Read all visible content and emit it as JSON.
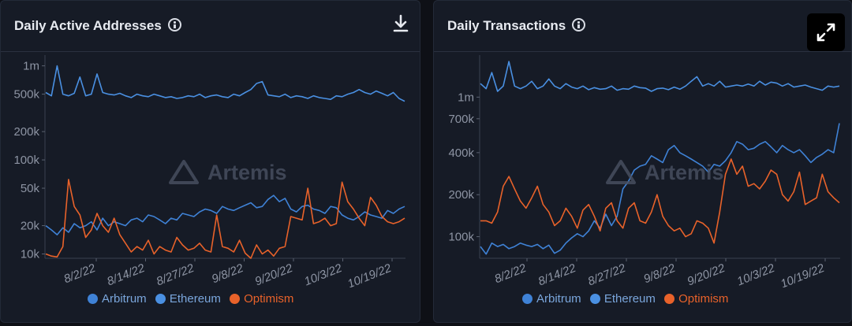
{
  "panels": {
    "left": {
      "title": "Daily Active Addresses",
      "watermark": "Artemis"
    },
    "right": {
      "title": "Daily Transactions",
      "watermark": "Artemis"
    }
  },
  "legend": [
    {
      "label": "Arbitrum",
      "color": "#3f82d6"
    },
    {
      "label": "Ethereum",
      "color": "#4a90e2"
    },
    {
      "label": "Optimism",
      "color": "#e8622a"
    }
  ],
  "icons": {
    "info": "info-icon",
    "download": "download-icon",
    "expand": "expand-icon",
    "logo": "artemis-logo-icon"
  },
  "chart_data": [
    {
      "type": "line",
      "title": "Daily Active Addresses",
      "y_scale": "log",
      "ylim": [
        9000,
        1300000
      ],
      "y_ticks": [
        {
          "value": 1000000,
          "label": "1m"
        },
        {
          "value": 500000,
          "label": "500k"
        },
        {
          "value": 200000,
          "label": "200k"
        },
        {
          "value": 100000,
          "label": "100k"
        },
        {
          "value": 50000,
          "label": "50k"
        },
        {
          "value": 20000,
          "label": "20k"
        },
        {
          "value": 10000,
          "label": "10k"
        }
      ],
      "x_ticks": [
        "8/2/22",
        "8/14/22",
        "8/27/22",
        "9/8/22",
        "9/20/22",
        "10/3/22",
        "10/19/22"
      ],
      "series": [
        {
          "name": "Ethereum",
          "color": "#4a90e2",
          "values": [
            520000,
            480000,
            1000000,
            500000,
            480000,
            510000,
            760000,
            480000,
            500000,
            820000,
            520000,
            500000,
            490000,
            510000,
            480000,
            460000,
            500000,
            480000,
            470000,
            500000,
            480000,
            460000,
            470000,
            450000,
            460000,
            480000,
            470000,
            500000,
            460000,
            480000,
            490000,
            470000,
            460000,
            500000,
            480000,
            520000,
            560000,
            650000,
            680000,
            490000,
            480000,
            470000,
            500000,
            460000,
            480000,
            470000,
            450000,
            480000,
            460000,
            450000,
            440000,
            480000,
            470000,
            500000,
            520000,
            560000,
            520000,
            500000,
            540000,
            510000,
            480000,
            520000,
            450000,
            420000
          ]
        },
        {
          "name": "Arbitrum",
          "color": "#3f82d6",
          "values": [
            20000,
            18000,
            16000,
            19000,
            17000,
            21000,
            19000,
            20000,
            22000,
            18000,
            24000,
            20000,
            22000,
            21000,
            20000,
            23000,
            24000,
            22000,
            26000,
            25000,
            23000,
            21000,
            24000,
            23000,
            27000,
            26000,
            25000,
            28000,
            30000,
            29000,
            27000,
            32000,
            30000,
            29000,
            31000,
            33000,
            35000,
            31000,
            32000,
            38000,
            42000,
            36000,
            39000,
            30000,
            28000,
            32000,
            33000,
            30000,
            29000,
            27000,
            32000,
            31000,
            26000,
            24000,
            23000,
            25000,
            28000,
            26000,
            25000,
            24000,
            29000,
            27000,
            30000,
            32000
          ]
        },
        {
          "name": "Optimism",
          "color": "#e8622a",
          "values": [
            10000,
            9500,
            9300,
            12000,
            62000,
            32000,
            26000,
            15000,
            18000,
            27000,
            20000,
            17000,
            24000,
            16000,
            13000,
            10500,
            12000,
            11000,
            14000,
            10000,
            12000,
            11000,
            10500,
            15000,
            12500,
            11000,
            11500,
            13000,
            11000,
            10500,
            26000,
            12000,
            11500,
            10500,
            14000,
            10200,
            9000,
            12500,
            10000,
            11000,
            9500,
            11500,
            12000,
            25000,
            24000,
            23000,
            50000,
            21000,
            22000,
            24000,
            20000,
            21000,
            58000,
            36000,
            30000,
            24000,
            20000,
            40000,
            33000,
            25000,
            22000,
            21000,
            22000,
            24000
          ]
        }
      ]
    },
    {
      "type": "line",
      "title": "Daily Transactions",
      "y_scale": "log",
      "ylim": [
        70000,
        2000000
      ],
      "y_ticks": [
        {
          "value": 1000000,
          "label": "1m"
        },
        {
          "value": 700000,
          "label": "700k"
        },
        {
          "value": 400000,
          "label": "400k"
        },
        {
          "value": 200000,
          "label": "200k"
        },
        {
          "value": 100000,
          "label": "100k"
        }
      ],
      "x_ticks": [
        "8/2/22",
        "8/14/22",
        "8/27/22",
        "9/8/22",
        "9/20/22",
        "10/3/22",
        "10/19/22"
      ],
      "series": [
        {
          "name": "Ethereum",
          "color": "#4a90e2",
          "values": [
            1250000,
            1150000,
            1500000,
            1100000,
            1200000,
            1800000,
            1200000,
            1150000,
            1200000,
            1300000,
            1150000,
            1200000,
            1350000,
            1200000,
            1150000,
            1250000,
            1180000,
            1150000,
            1200000,
            1130000,
            1170000,
            1140000,
            1150000,
            1200000,
            1120000,
            1150000,
            1140000,
            1200000,
            1170000,
            1160000,
            1100000,
            1150000,
            1160000,
            1130000,
            1180000,
            1140000,
            1200000,
            1300000,
            1400000,
            1200000,
            1250000,
            1200000,
            1300000,
            1180000,
            1200000,
            1220000,
            1200000,
            1240000,
            1200000,
            1300000,
            1220000,
            1280000,
            1260000,
            1200000,
            1250000,
            1180000,
            1200000,
            1220000,
            1180000,
            1150000,
            1120000,
            1200000,
            1180000,
            1200000
          ]
        },
        {
          "name": "Arbitrum",
          "color": "#3f82d6",
          "values": [
            85000,
            75000,
            90000,
            85000,
            88000,
            82000,
            85000,
            90000,
            87000,
            85000,
            88000,
            82000,
            87000,
            76000,
            80000,
            90000,
            98000,
            105000,
            100000,
            110000,
            130000,
            115000,
            145000,
            120000,
            140000,
            220000,
            250000,
            300000,
            320000,
            330000,
            380000,
            360000,
            340000,
            420000,
            450000,
            400000,
            380000,
            360000,
            340000,
            320000,
            290000,
            330000,
            320000,
            350000,
            400000,
            480000,
            460000,
            420000,
            430000,
            460000,
            480000,
            440000,
            400000,
            450000,
            420000,
            400000,
            420000,
            380000,
            340000,
            370000,
            390000,
            420000,
            400000,
            650000
          ]
        },
        {
          "name": "Optimism",
          "color": "#e8622a",
          "values": [
            130000,
            130000,
            125000,
            150000,
            230000,
            270000,
            220000,
            180000,
            160000,
            190000,
            230000,
            170000,
            150000,
            120000,
            130000,
            160000,
            140000,
            115000,
            155000,
            170000,
            140000,
            110000,
            160000,
            175000,
            130000,
            115000,
            160000,
            175000,
            130000,
            125000,
            150000,
            200000,
            140000,
            120000,
            110000,
            115000,
            100000,
            105000,
            130000,
            125000,
            115000,
            90000,
            150000,
            280000,
            360000,
            280000,
            320000,
            230000,
            240000,
            220000,
            250000,
            300000,
            280000,
            200000,
            180000,
            210000,
            290000,
            170000,
            180000,
            190000,
            280000,
            210000,
            190000,
            175000
          ]
        }
      ]
    }
  ]
}
